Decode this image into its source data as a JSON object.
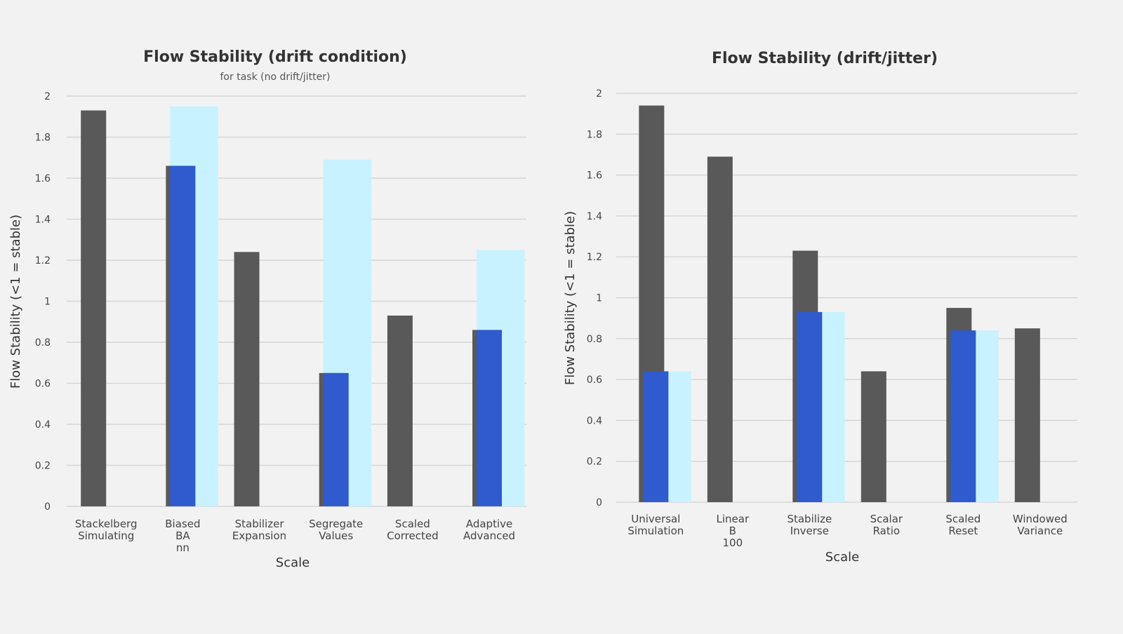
{
  "chart_data": [
    {
      "type": "bar",
      "title": "Flow Stability (drift condition)",
      "subtitle": "for task (no drift/jitter)",
      "xlabel": "Scale",
      "ylabel": "Flow Stability (<1 = stable)",
      "ylim": [
        0,
        2
      ],
      "yticks": [
        "0",
        "0.2",
        "0.4",
        "0.6",
        "0.8",
        "1",
        "1.2",
        "1.4",
        "1.6",
        "1.8",
        "2"
      ],
      "grid": true,
      "categories": [
        "Stackelberg Simulating",
        "Biased BA nn",
        "Stabilizer Expansion",
        "Segregate Values",
        "Scaled Corrected",
        "Adaptive Advanced"
      ],
      "series": [
        {
          "values": [
            1.93,
            1.66,
            1.24,
            0.65,
            0.93,
            0.86
          ]
        },
        {
          "values": [
            null,
            1.95,
            null,
            1.69,
            null,
            1.25
          ]
        }
      ],
      "colors": {
        "base": "#595959",
        "overlay": "#2f5bce",
        "highlight": "#c8f2ff",
        "grid": "#d6d6d6"
      }
    },
    {
      "type": "bar",
      "title": "Flow Stability (drift/jitter)",
      "subtitle": "",
      "xlabel": "Scale",
      "ylabel": "Flow Stability (<1 = stable)",
      "ylim": [
        0,
        2
      ],
      "yticks": [
        "0",
        "0.2",
        "0.4",
        "0.6",
        "0.8",
        "1",
        "1.2",
        "1.4",
        "1.6",
        "1.8",
        "2"
      ],
      "grid": true,
      "categories": [
        "Universal Simulation",
        "Linear B 100",
        "Stabilize Inverse",
        "Scalar Ratio",
        "Scaled Reset",
        "Windowed Variance"
      ],
      "series": [
        {
          "values": [
            1.94,
            1.69,
            1.23,
            0.64,
            0.95,
            0.85
          ]
        },
        {
          "values": [
            0.64,
            null,
            0.93,
            null,
            0.84,
            null
          ]
        }
      ],
      "colors": {
        "base": "#595959",
        "overlay": "#2f5bce",
        "highlight": "#c8f2ff",
        "grid": "#d6d6d6"
      }
    }
  ]
}
